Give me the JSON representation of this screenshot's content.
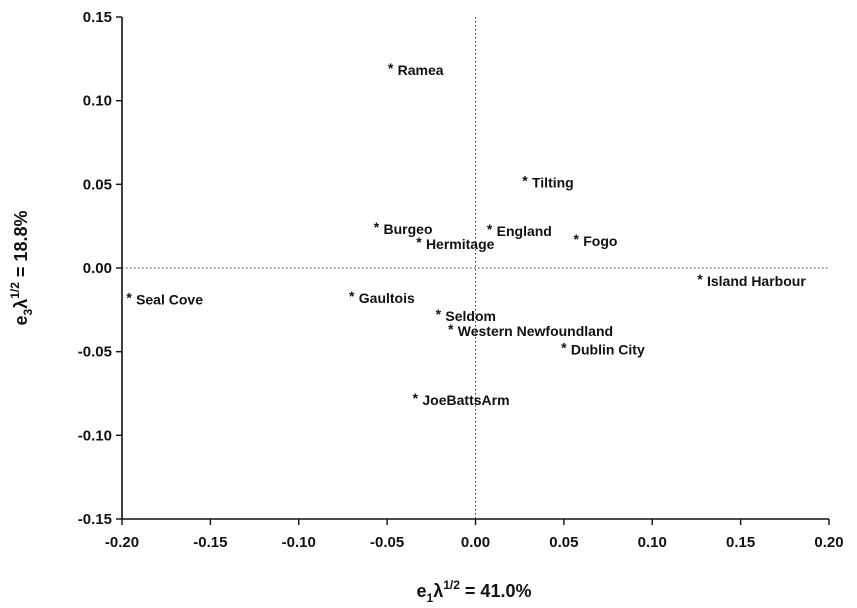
{
  "chart_data": {
    "type": "scatter",
    "xlabel": {
      "base": "e",
      "sub": "1",
      "greek": "λ",
      "sup": "1/2",
      "rest": " = 41.0%"
    },
    "ylabel": {
      "base": "e",
      "sub": "3",
      "greek": "λ",
      "sup": "1/2",
      "rest": " = 18.8%"
    },
    "xlim": [
      -0.2,
      0.2
    ],
    "ylim": [
      -0.15,
      0.15
    ],
    "xticks": [
      -0.2,
      -0.15,
      -0.1,
      -0.05,
      0.0,
      0.05,
      0.1,
      0.15,
      0.2
    ],
    "xtick_labels": [
      "-0.20",
      "-0.15",
      "-0.10",
      "-0.05",
      "0.00",
      "0.05",
      "0.10",
      "0.15",
      "0.20"
    ],
    "yticks": [
      -0.15,
      -0.1,
      -0.05,
      0.0,
      0.05,
      0.1,
      0.15
    ],
    "ytick_labels": [
      "-0.15",
      "-0.10",
      "-0.05",
      "0.00",
      "0.05",
      "0.10",
      "0.15"
    ],
    "grid": false,
    "reference_lines": {
      "x0": true,
      "y0": true
    },
    "marker": "*",
    "points": [
      {
        "label": "Ramea",
        "x": -0.048,
        "y": 0.12
      },
      {
        "label": "Tilting",
        "x": 0.028,
        "y": 0.053
      },
      {
        "label": "Burgeo",
        "x": -0.056,
        "y": 0.025
      },
      {
        "label": "England",
        "x": 0.008,
        "y": 0.024
      },
      {
        "label": "Fogo",
        "x": 0.057,
        "y": 0.018
      },
      {
        "label": "Hermitage",
        "x": -0.032,
        "y": 0.016
      },
      {
        "label": "Island Harbour",
        "x": 0.127,
        "y": -0.006
      },
      {
        "label": "Seal Cove",
        "x": -0.196,
        "y": -0.017
      },
      {
        "label": "Gaultois",
        "x": -0.07,
        "y": -0.016
      },
      {
        "label": "Seldom",
        "x": -0.021,
        "y": -0.027
      },
      {
        "label": "Western Newfoundland",
        "x": -0.014,
        "y": -0.036
      },
      {
        "label": "Dublin City",
        "x": 0.05,
        "y": -0.047
      },
      {
        "label": "JoeBattsArm",
        "x": -0.034,
        "y": -0.077
      }
    ]
  }
}
